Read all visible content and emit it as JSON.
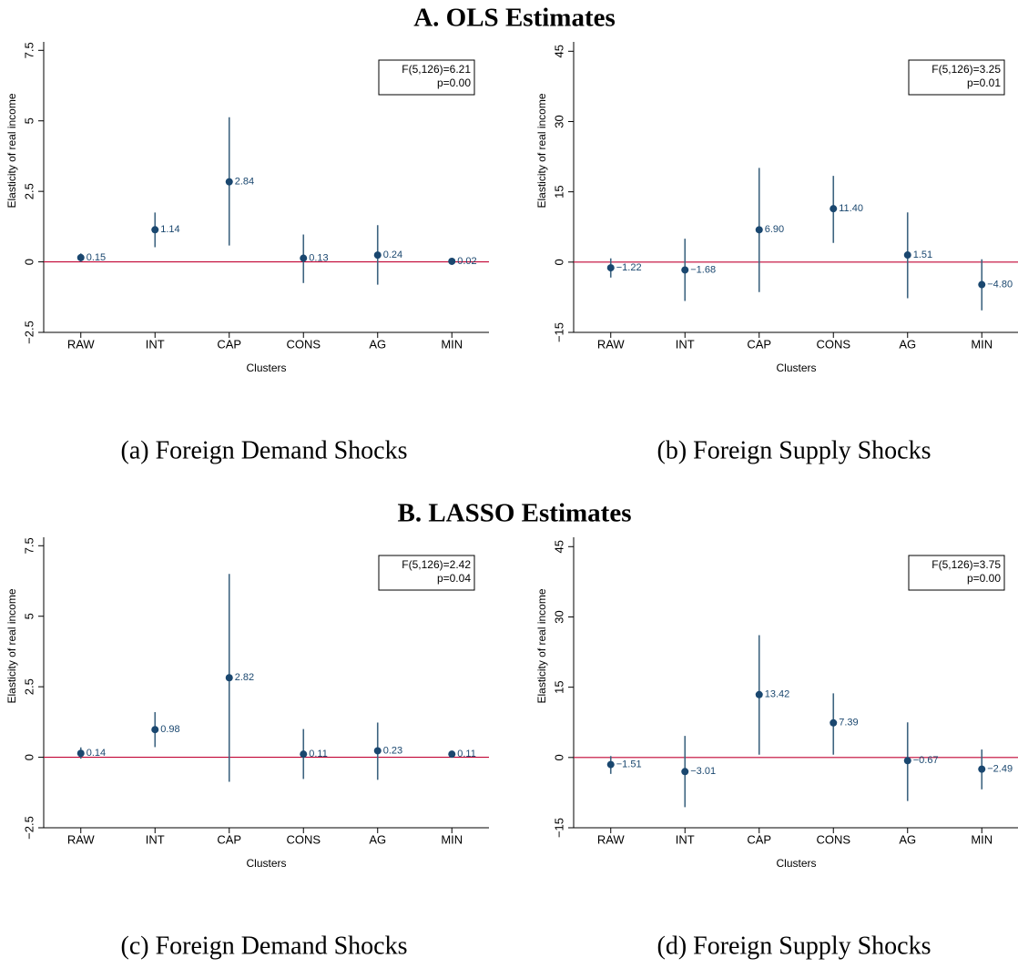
{
  "section_titles": [
    "A. OLS Estimates",
    "B. LASSO Estimates"
  ],
  "chart_data": [
    {
      "type": "errorbar",
      "caption": "(a) Foreign Demand Shocks",
      "ylabel": "Elasticity of real income",
      "xlabel": "Clusters",
      "categories": [
        "RAW",
        "INT",
        "CAP",
        "CONS",
        "AG",
        "MIN"
      ],
      "values": [
        0.15,
        1.14,
        2.84,
        0.13,
        0.24,
        0.02
      ],
      "ci_low": [
        0.0,
        0.52,
        0.58,
        -0.75,
        -0.81,
        0.0
      ],
      "ci_high": [
        0.3,
        1.75,
        5.13,
        0.97,
        1.3,
        0.04
      ],
      "color": "#1a476f",
      "reference_line": 0,
      "reference_color": "#c10534",
      "ylim": [
        -2.5,
        7.8
      ],
      "yticks": [
        {
          "value": -2.5,
          "label": "−2.5"
        },
        0,
        2.5,
        5,
        7.5
      ],
      "annotation": [
        "F(5,126)=6.21",
        "p=0.00"
      ]
    },
    {
      "type": "errorbar",
      "caption": "(b) Foreign Supply Shocks",
      "ylabel": "Elasticity of real income",
      "xlabel": "Clusters",
      "categories": [
        "RAW",
        "INT",
        "CAP",
        "CONS",
        "AG",
        "MIN"
      ],
      "values": [
        -1.22,
        -1.68,
        6.9,
        11.4,
        1.51,
        -4.8
      ],
      "value_labels": [
        "−1.22",
        "−1.68",
        "6.90",
        "11.40",
        "1.51",
        "−4.80"
      ],
      "ci_low": [
        -3.3,
        -8.3,
        -6.4,
        4.1,
        -7.7,
        -10.3
      ],
      "ci_high": [
        0.8,
        5.0,
        20.1,
        18.4,
        10.6,
        0.6
      ],
      "color": "#1a476f",
      "reference_line": 0,
      "reference_color": "#c10534",
      "ylim": [
        -15,
        47
      ],
      "yticks": [
        {
          "value": -15,
          "label": "−15"
        },
        0,
        15,
        30,
        45
      ],
      "annotation": [
        "F(5,126)=3.25",
        "p=0.01"
      ]
    },
    {
      "type": "errorbar",
      "caption": "(c) Foreign Demand Shocks",
      "ylabel": "Elasticity of real income",
      "xlabel": "Clusters",
      "categories": [
        "RAW",
        "INT",
        "CAP",
        "CONS",
        "AG",
        "MIN"
      ],
      "values": [
        0.14,
        0.98,
        2.82,
        0.11,
        0.23,
        0.11
      ],
      "ci_low": [
        -0.05,
        0.36,
        -0.87,
        -0.77,
        -0.8,
        0.05
      ],
      "ci_high": [
        0.35,
        1.6,
        6.5,
        1.0,
        1.23,
        0.17
      ],
      "color": "#1a476f",
      "reference_line": 0,
      "reference_color": "#c10534",
      "ylim": [
        -2.5,
        7.8
      ],
      "yticks": [
        {
          "value": -2.5,
          "label": "−2.5"
        },
        0,
        2.5,
        5,
        7.5
      ],
      "annotation": [
        "F(5,126)=2.42",
        "p=0.04"
      ]
    },
    {
      "type": "errorbar",
      "caption": "(d) Foreign Supply Shocks",
      "ylabel": "Elasticity of real income",
      "xlabel": "Clusters",
      "categories": [
        "RAW",
        "INT",
        "CAP",
        "CONS",
        "AG",
        "MIN"
      ],
      "values": [
        -1.51,
        -3.01,
        13.42,
        7.39,
        -0.67,
        -2.49
      ],
      "value_labels": [
        "−1.51",
        "−3.01",
        "13.42",
        "7.39",
        "−0.67",
        "−2.49"
      ],
      "ci_low": [
        -3.5,
        -10.6,
        0.6,
        0.6,
        -9.3,
        -6.8
      ],
      "ci_high": [
        0.3,
        4.6,
        26.1,
        13.7,
        7.5,
        1.7
      ],
      "color": "#1a476f",
      "reference_line": 0,
      "reference_color": "#c10534",
      "ylim": [
        -15,
        47
      ],
      "yticks": [
        {
          "value": -15,
          "label": "−15"
        },
        0,
        15,
        30,
        45
      ],
      "annotation": [
        "F(5,126)=3.75",
        "p=0.00"
      ]
    }
  ]
}
